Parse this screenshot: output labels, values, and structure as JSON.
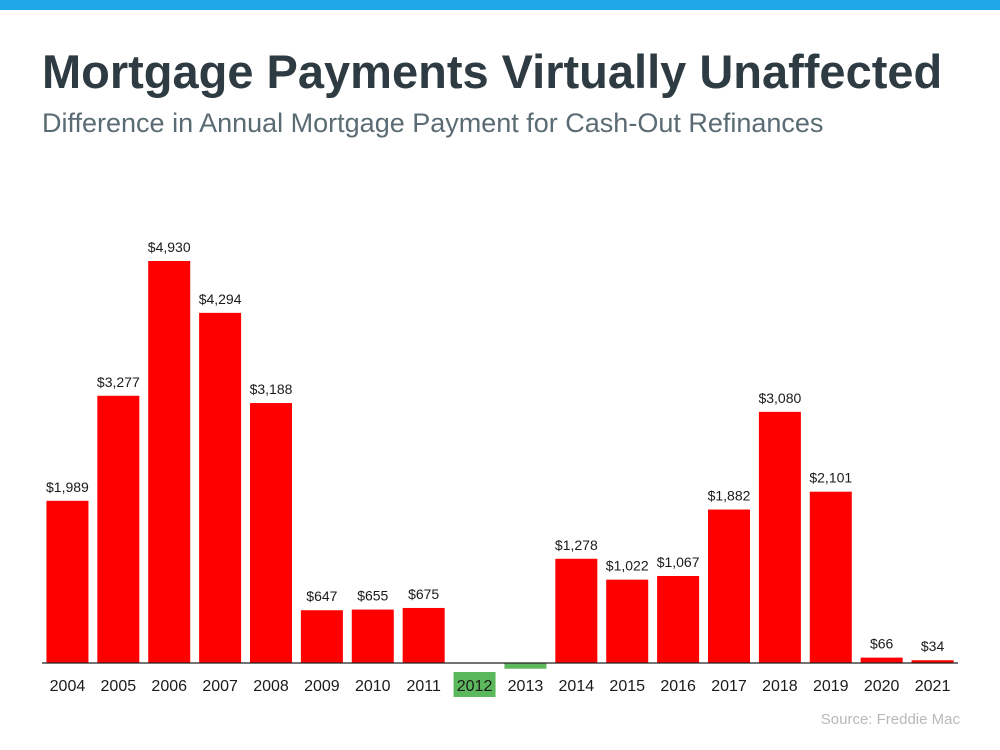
{
  "colors": {
    "top_bar": "#1ea8e8",
    "positive_bar": "#ff0000",
    "negative_bar": "#5cb85c",
    "axis": "#222222"
  },
  "header": {
    "title": "Mortgage Payments Virtually Unaffected",
    "subtitle": "Difference in Annual Mortgage Payment for Cash-Out Refinances"
  },
  "footer": {
    "source": "Source: Freddie Mac"
  },
  "chart_data": {
    "type": "bar",
    "title": "Mortgage Payments Virtually Unaffected",
    "subtitle": "Difference in Annual Mortgage Payment for Cash-Out Refinances",
    "xlabel": "",
    "ylabel": "",
    "grid": false,
    "legend": "none",
    "ylim": [
      -80,
      5000
    ],
    "categories": [
      "2004",
      "2005",
      "2006",
      "2007",
      "2008",
      "2009",
      "2010",
      "2011",
      "2012",
      "2013",
      "2014",
      "2015",
      "2016",
      "2017",
      "2018",
      "2019",
      "2020",
      "2021"
    ],
    "values": [
      1989,
      3277,
      4930,
      4294,
      3188,
      647,
      655,
      675,
      -1,
      -70,
      1278,
      1022,
      1067,
      1882,
      3080,
      2101,
      66,
      34
    ],
    "data_labels": [
      "$1,989",
      "$3,277",
      "$4,930",
      "$4,294",
      "$3,188",
      "$647",
      "$655",
      "$675",
      "",
      "",
      "$1,278",
      "$1,022",
      "$1,067",
      "$1,882",
      "$3,080",
      "$2,101",
      "$66",
      "$34"
    ],
    "highlighted_category": "2012",
    "highlight_color": "#5cb85c"
  }
}
